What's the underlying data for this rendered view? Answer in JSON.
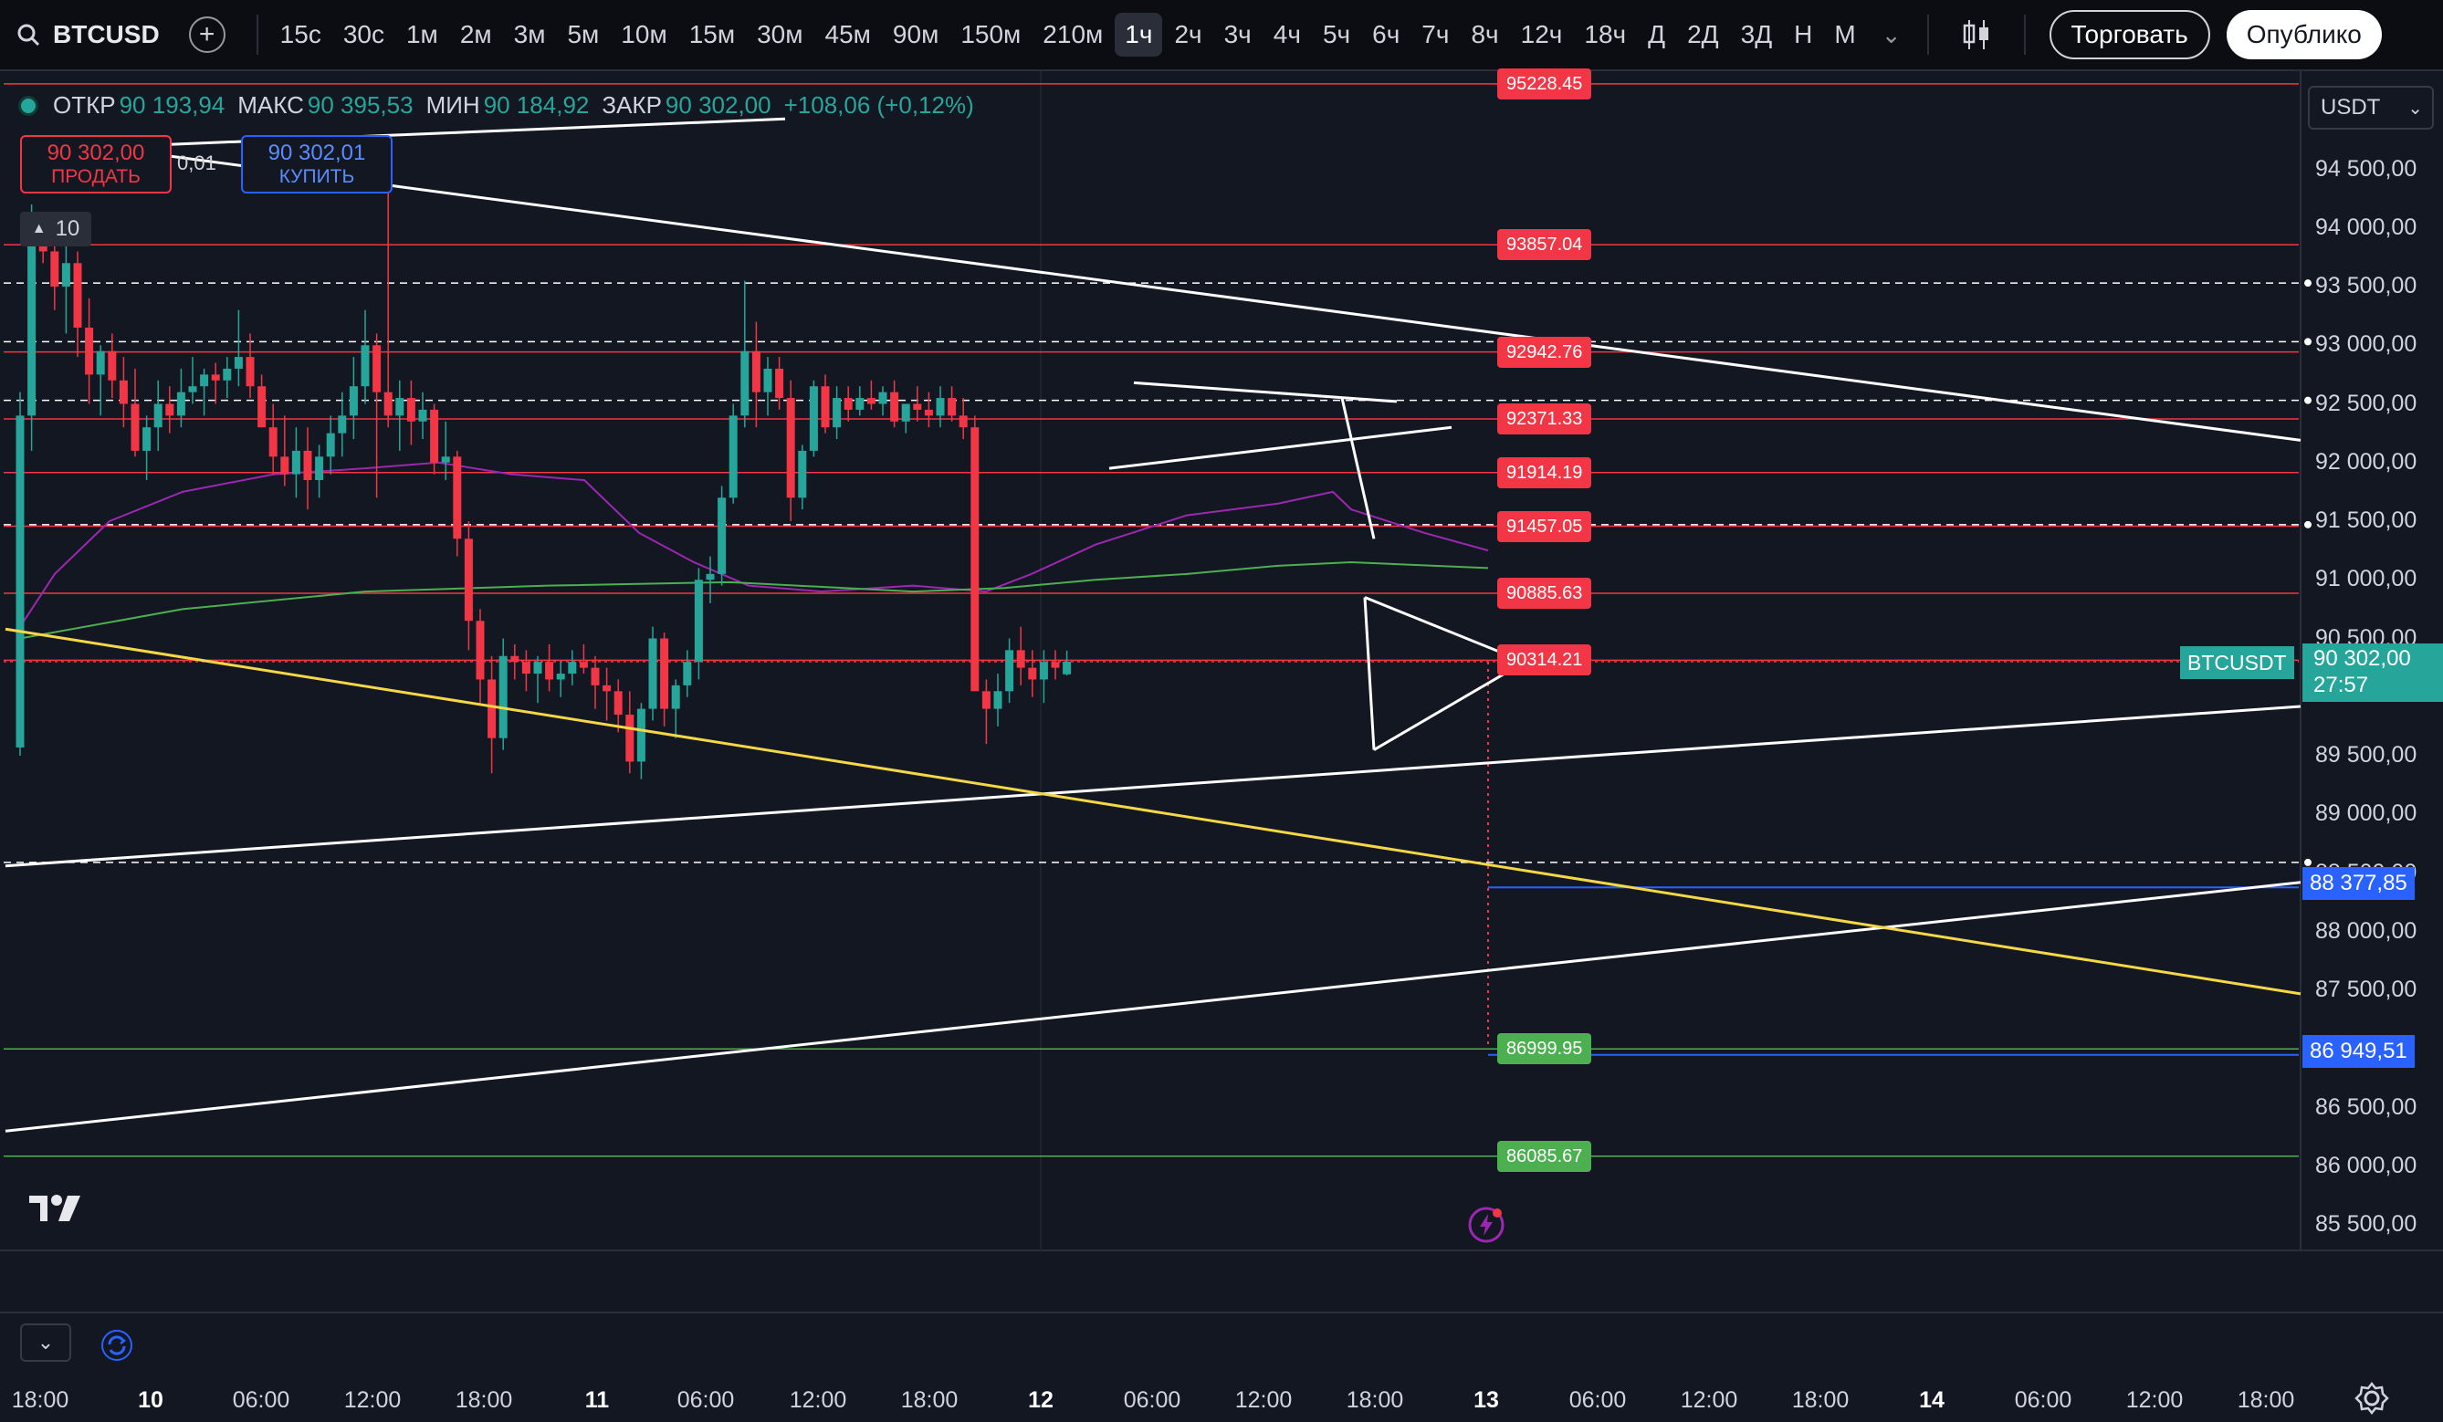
{
  "toolbar": {
    "symbol": "BTCUSD",
    "timeframes": [
      "15с",
      "30с",
      "1м",
      "2м",
      "3м",
      "5м",
      "10м",
      "15м",
      "30м",
      "45м",
      "90м",
      "150м",
      "210м",
      "1ч",
      "2ч",
      "3ч",
      "4ч",
      "5ч",
      "6ч",
      "7ч",
      "8ч",
      "12ч",
      "18ч",
      "Д",
      "2Д",
      "3Д",
      "Н",
      "М"
    ],
    "active_timeframe": "1ч",
    "trade_button": "Торговать",
    "publish_button": "Опублико"
  },
  "legend": {
    "open_label": "ОТКР",
    "open": "90 193,94",
    "high_label": "МАКС",
    "high": "90 395,53",
    "low_label": "МИН",
    "low": "90 184,92",
    "close_label": "ЗАКР",
    "close": "90 302,00",
    "change": "+108,06 (+0,12%)"
  },
  "trade": {
    "sell_price": "90 302,00",
    "sell_label": "ПРОДАТЬ",
    "buy_price": "90 302,01",
    "buy_label": "КУПИТЬ",
    "spread": "0,01",
    "lots": "10"
  },
  "currency": "USDT",
  "price_axis": [
    "94 500,00",
    "94 000,00",
    "93 500,00",
    "93 000,00",
    "92 500,00",
    "92 000,00",
    "91 500,00",
    "91 000,00",
    "90 500,00",
    "89 500,00",
    "89 000,00",
    "88 500,00",
    "88 000,00",
    "87 500,00",
    "86 500,00",
    "86 000,00",
    "85 500,00"
  ],
  "level_labels": {
    "red": [
      "95228.45",
      "93857.04",
      "92942.76",
      "92371.33",
      "91914.19",
      "91457.05",
      "90885.63",
      "90314.21"
    ],
    "green": [
      "86999.95",
      "86085.67"
    ]
  },
  "alerts": [
    "88 377,85",
    "86 949,51"
  ],
  "current": {
    "symbol": "BTCUSDT",
    "price": "90 302,00",
    "countdown": "27:57"
  },
  "time_axis": [
    "18:00",
    "10",
    "06:00",
    "12:00",
    "18:00",
    "11",
    "06:00",
    "12:00",
    "18:00",
    "12",
    "06:00",
    "12:00",
    "18:00",
    "13",
    "06:00",
    "12:00",
    "18:00",
    "14",
    "06:00",
    "12:00",
    "18:00"
  ],
  "colors": {
    "up": "#26a69a",
    "down": "#f23645",
    "background": "#131722",
    "level_red": "#f23645",
    "level_green": "#4caf50",
    "trend_white": "#ffffff",
    "trend_yellow": "#f5d845",
    "ma_purple": "#9c27b0",
    "ma_green": "#4caf50",
    "alert_blue": "#2962ff"
  },
  "icons": [
    "search-icon",
    "add-symbol-icon",
    "chevron-down-icon",
    "candle-style-icon",
    "tradingview-logo",
    "lightning-icon",
    "sync-icon",
    "settings-icon"
  ]
}
